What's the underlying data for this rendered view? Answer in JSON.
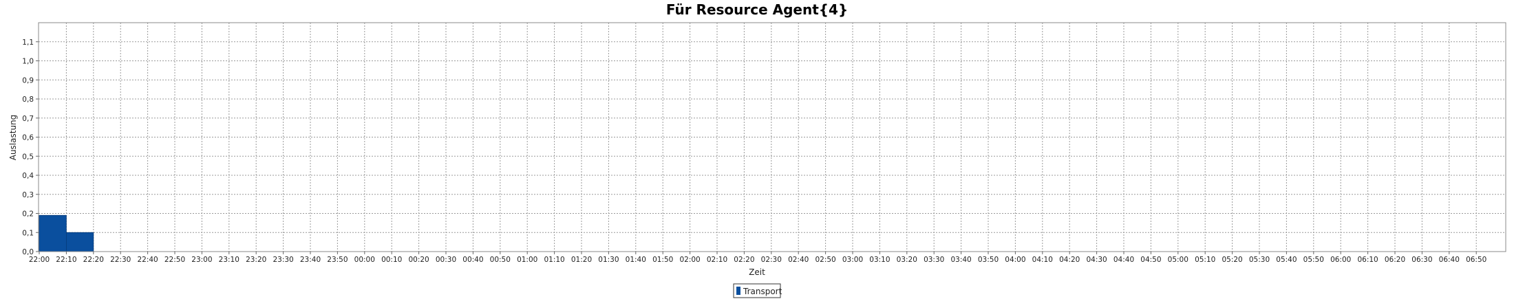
{
  "chart_data": {
    "type": "bar",
    "title": "Für Resource Agent{4}",
    "xlabel": "Zeit",
    "ylabel": "Auslastung",
    "categories": [
      "22:00",
      "22:10",
      "22:20",
      "22:30",
      "22:40",
      "22:50",
      "23:00",
      "23:10",
      "23:20",
      "23:30",
      "23:40",
      "23:50",
      "00:00",
      "00:10",
      "00:20",
      "00:30",
      "00:40",
      "00:50",
      "01:00",
      "01:10",
      "01:20",
      "01:30",
      "01:40",
      "01:50",
      "02:00",
      "02:10",
      "02:20",
      "02:30",
      "02:40",
      "02:50",
      "03:00",
      "03:10",
      "03:20",
      "03:30",
      "03:40",
      "03:50",
      "04:00",
      "04:10",
      "04:20",
      "04:30",
      "04:40",
      "04:50",
      "05:00",
      "05:10",
      "05:20",
      "05:30",
      "05:40",
      "05:50",
      "06:00",
      "06:10",
      "06:20",
      "06:30",
      "06:40",
      "06:50"
    ],
    "y_ticks": [
      "0,0",
      "0,1",
      "0,2",
      "0,3",
      "0,4",
      "0,5",
      "0,6",
      "0,7",
      "0,8",
      "0,9",
      "1,0",
      "1,1"
    ],
    "ylim": [
      0,
      1.2
    ],
    "grid": true,
    "legend": "bottom-center",
    "series": [
      {
        "name": "Transport",
        "color": "#0a4f9e",
        "bars": [
          {
            "start": "22:00",
            "end": "22:10",
            "value": 0.19
          },
          {
            "start": "22:10",
            "end": "22:20",
            "value": 0.1
          }
        ]
      }
    ]
  }
}
